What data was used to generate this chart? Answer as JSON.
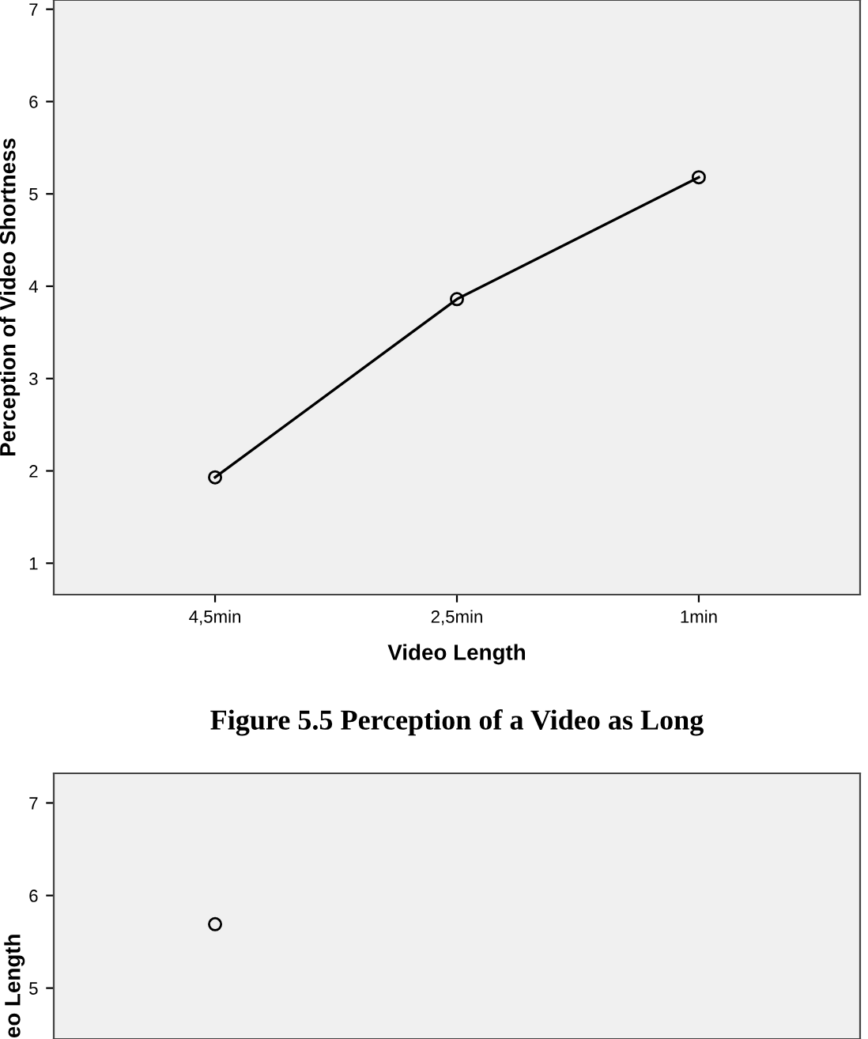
{
  "chart_data": [
    {
      "type": "line",
      "xlabel": "Video Length",
      "ylabel": "Perception of Video Shortness",
      "categories": [
        "4,5min",
        "2,5min",
        "1min"
      ],
      "series": [
        {
          "color": "#000000",
          "values": [
            1.93,
            3.86,
            5.18
          ]
        }
      ],
      "ylim": [
        0.66,
        7.1
      ],
      "yticks": [
        1,
        2,
        3,
        4,
        5,
        6,
        7
      ],
      "marker": "circle",
      "line_style": "solid",
      "grid": false,
      "legend": false
    },
    {
      "type": "line",
      "title": "Figure 5.5 Perception of a Video as Long",
      "ylabel": "eo Length",
      "categories": [
        null,
        null,
        null
      ],
      "series": [
        {
          "color": "#000000",
          "values": [
            5.69,
            null,
            null
          ]
        }
      ],
      "ylim": [
        4.45,
        7.32
      ],
      "yticks": [
        5,
        6,
        7
      ],
      "marker": "circle",
      "line_style": "solid",
      "grid": false,
      "legend": false,
      "tick_labels": "y"
    }
  ]
}
